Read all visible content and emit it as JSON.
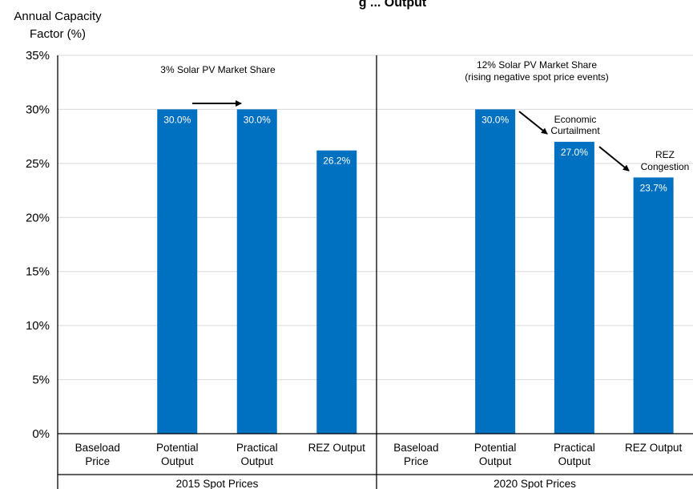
{
  "chart_data": {
    "type": "bar",
    "title": "g ... Output",
    "ylabel_line1": "Annual Capacity",
    "ylabel_line2": "Factor (%)",
    "ylim": [
      0,
      35
    ],
    "yticks": [
      "0%",
      "5%",
      "10%",
      "15%",
      "20%",
      "25%",
      "30%",
      "35%"
    ],
    "grid": true,
    "bar_color": "#0070c0",
    "groups": [
      {
        "name": "2015 Spot Prices",
        "annotation": "3% Solar PV Market Share",
        "categories": [
          {
            "line1": "Baseload",
            "line2": "Price",
            "value": null,
            "label": ""
          },
          {
            "line1": "Potential",
            "line2": "Output",
            "value": 30.0,
            "label": "30.0%"
          },
          {
            "line1": "Practical",
            "line2": "Output",
            "value": 30.0,
            "label": "30.0%"
          },
          {
            "line1": "REZ Output",
            "line2": "",
            "value": 26.2,
            "label": "26.2%"
          }
        ]
      },
      {
        "name": "2020 Spot Prices",
        "annotation": "12% Solar PV Market Share",
        "annotation2": "(rising negative spot price events)",
        "categories": [
          {
            "line1": "Baseload",
            "line2": "Price",
            "value": null,
            "label": ""
          },
          {
            "line1": "Potential",
            "line2": "Output",
            "value": 30.0,
            "label": "30.0%"
          },
          {
            "line1": "Practical",
            "line2": "Output",
            "value": 27.0,
            "label": "27.0%"
          },
          {
            "line1": "REZ Output",
            "line2": "",
            "value": 23.7,
            "label": "23.7%"
          }
        ]
      }
    ],
    "callouts": {
      "economic_line1": "Economic",
      "economic_line2": "Curtailment",
      "rez_line1": "REZ",
      "rez_line2": "Congestion"
    }
  }
}
